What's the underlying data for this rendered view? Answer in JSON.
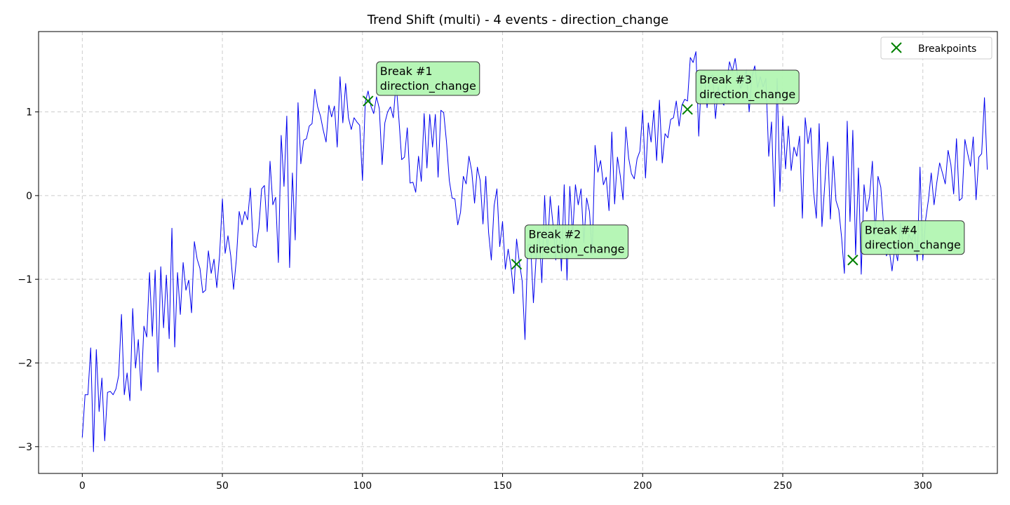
{
  "chart_data": {
    "type": "line",
    "title": "Trend Shift (multi) - 4 events - direction_change",
    "xlabel": "",
    "ylabel": "",
    "xlim": [
      -15.6,
      326.6
    ],
    "ylim": [
      -3.32,
      1.96
    ],
    "xticks": [
      0,
      50,
      100,
      150,
      200,
      250,
      300
    ],
    "yticks": [
      -3,
      -2,
      -1,
      0,
      1
    ],
    "grid": true,
    "legend_position": "top-right",
    "colors": {
      "line": "#0000ee",
      "marker": "#008000",
      "annotation_bg": "#b2f5b2",
      "grid": "#cccccc"
    },
    "series": [
      {
        "values": [
          -2.89,
          -2.38,
          -2.38,
          -1.82,
          -3.06,
          -1.84,
          -2.58,
          -2.18,
          -2.93,
          -2.35,
          -2.34,
          -2.38,
          -2.31,
          -2.15,
          -1.42,
          -2.38,
          -2.12,
          -2.45,
          -1.35,
          -2.06,
          -1.72,
          -2.33,
          -1.56,
          -1.69,
          -0.92,
          -1.68,
          -0.89,
          -2.11,
          -0.85,
          -1.58,
          -0.95,
          -1.71,
          -0.39,
          -1.81,
          -0.92,
          -1.42,
          -0.8,
          -1.13,
          -1.01,
          -1.4,
          -0.55,
          -0.76,
          -0.87,
          -1.16,
          -1.13,
          -0.66,
          -0.93,
          -0.76,
          -1.1,
          -0.71,
          -0.04,
          -0.69,
          -0.48,
          -0.72,
          -1.12,
          -0.76,
          -0.19,
          -0.35,
          -0.19,
          -0.29,
          0.09,
          -0.6,
          -0.62,
          -0.39,
          0.08,
          0.12,
          -0.43,
          0.41,
          -0.11,
          -0.02,
          -0.8,
          0.72,
          0.11,
          0.95,
          -0.86,
          0.27,
          -0.53,
          1.11,
          0.38,
          0.66,
          0.68,
          0.83,
          0.86,
          1.27,
          1.06,
          0.95,
          0.78,
          0.64,
          1.08,
          0.94,
          1.07,
          0.58,
          1.42,
          0.87,
          1.34,
          0.93,
          0.79,
          0.93,
          0.88,
          0.84,
          0.18,
          1.12,
          1.25,
          1.07,
          0.98,
          1.18,
          1.04,
          0.37,
          0.87,
          1.0,
          1.06,
          0.93,
          1.35,
          0.92,
          0.43,
          0.46,
          0.81,
          0.15,
          0.16,
          0.04,
          0.47,
          0.17,
          0.98,
          0.33,
          0.97,
          0.58,
          0.97,
          0.22,
          1.02,
          0.99,
          0.64,
          0.18,
          -0.03,
          -0.04,
          -0.35,
          -0.2,
          0.23,
          0.14,
          0.47,
          0.29,
          -0.09,
          0.34,
          0.18,
          -0.34,
          0.23,
          -0.44,
          -0.77,
          -0.12,
          0.08,
          -0.61,
          -0.31,
          -0.88,
          -0.64,
          -0.85,
          -1.17,
          -0.52,
          -0.8,
          -1.02,
          -1.72,
          -0.59,
          -0.58,
          -1.28,
          -0.72,
          -0.41,
          -1.04,
          0.0,
          -0.71,
          -0.01,
          -0.34,
          -0.77,
          -0.12,
          -0.9,
          0.13,
          -1.01,
          0.11,
          -0.48,
          0.13,
          -0.11,
          0.08,
          -0.56,
          -0.03,
          -0.19,
          -0.7,
          0.6,
          0.28,
          0.42,
          0.13,
          0.22,
          -0.18,
          0.76,
          -0.1,
          0.46,
          0.24,
          -0.05,
          0.82,
          0.45,
          0.26,
          0.2,
          0.44,
          0.53,
          1.02,
          0.21,
          0.87,
          0.64,
          1.02,
          0.42,
          1.14,
          0.39,
          0.74,
          0.69,
          0.91,
          0.93,
          1.13,
          0.83,
          1.08,
          1.15,
          1.13,
          1.65,
          1.59,
          1.72,
          0.71,
          1.43,
          1.43,
          1.05,
          1.42,
          1.44,
          0.92,
          1.3,
          1.13,
          1.08,
          1.34,
          1.6,
          1.48,
          1.64,
          1.4,
          1.28,
          1.37,
          1.5,
          1.0,
          1.42,
          1.55,
          1.29,
          1.42,
          1.3,
          1.4,
          0.47,
          0.88,
          -0.13,
          1.4,
          0.05,
          0.95,
          0.32,
          0.83,
          0.3,
          0.58,
          0.47,
          0.71,
          -0.27,
          0.93,
          0.62,
          0.81,
          0.05,
          -0.27,
          0.86,
          -0.37,
          0.13,
          0.64,
          -0.28,
          0.47,
          -0.06,
          -0.17,
          -0.5,
          -0.93,
          0.89,
          -0.31,
          0.78,
          -0.71,
          0.33,
          -0.94,
          0.13,
          -0.19,
          -0.01,
          0.41,
          -0.48,
          0.23,
          0.1,
          -0.35,
          -0.72,
          -0.64,
          -0.9,
          -0.62,
          -0.78,
          -0.33,
          -0.6,
          -0.65,
          -0.46,
          -0.54,
          -0.43,
          -0.78,
          0.34,
          -0.77,
          -0.29,
          -0.05,
          0.27,
          -0.11,
          0.16,
          0.39,
          0.27,
          0.14,
          0.54,
          0.37,
          0.02,
          0.68,
          -0.06,
          -0.03,
          0.67,
          0.5,
          0.35,
          0.7,
          -0.05,
          0.46,
          0.5,
          1.17,
          0.31
        ]
      }
    ],
    "breakpoints": {
      "legend_label": "Breakpoints",
      "points": [
        {
          "x": 102,
          "y": 1.13,
          "label_line1": "Break #1",
          "label_line2": "direction_change"
        },
        {
          "x": 155,
          "y": -0.82,
          "label_line1": "Break #2",
          "label_line2": "direction_change"
        },
        {
          "x": 216,
          "y": 1.03,
          "label_line1": "Break #3",
          "label_line2": "direction_change"
        },
        {
          "x": 275,
          "y": -0.77,
          "label_line1": "Break #4",
          "label_line2": "direction_change"
        }
      ]
    }
  }
}
